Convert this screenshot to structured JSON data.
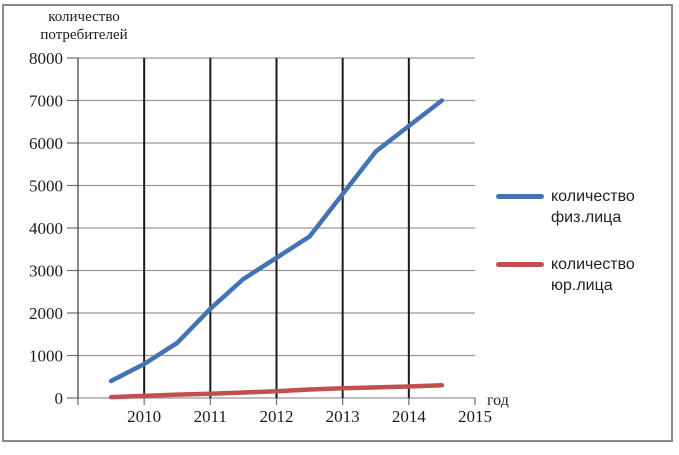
{
  "window": {
    "background": "#ffffff",
    "border_color": "#8a8a8a"
  },
  "chart_data": {
    "type": "line",
    "title": "количество потребителей",
    "xlabel": "год",
    "ylabel": "количество потребителей",
    "x": [
      2009.5,
      2010,
      2010.5,
      2011,
      2011.5,
      2012,
      2012.5,
      2013,
      2013.5,
      2014,
      2014.5
    ],
    "series": [
      {
        "name": "количество физ.лица",
        "color": "#4473b3",
        "values": [
          400,
          800,
          1300,
          2100,
          2800,
          3300,
          3800,
          4800,
          5800,
          6400,
          7000
        ]
      },
      {
        "name": "количество юр.лица",
        "color": "#c0504d",
        "values": [
          20,
          50,
          80,
          100,
          130,
          160,
          200,
          230,
          250,
          270,
          300
        ]
      }
    ],
    "x_ticks": [
      2010,
      2011,
      2012,
      2013,
      2014,
      2015
    ],
    "y_ticks": [
      0,
      1000,
      2000,
      3000,
      4000,
      5000,
      6000,
      7000,
      8000
    ],
    "xlim": [
      2009,
      2015
    ],
    "ylim": [
      0,
      8000
    ],
    "grid": {
      "horizontal": true,
      "vertical": true,
      "vertical_years": [
        2010,
        2011,
        2012,
        2013,
        2014
      ],
      "h_color": "#979797",
      "v_color": "#1a1a1a",
      "axis_color": "#6e6e6e"
    },
    "legend_position": "right-middle"
  }
}
